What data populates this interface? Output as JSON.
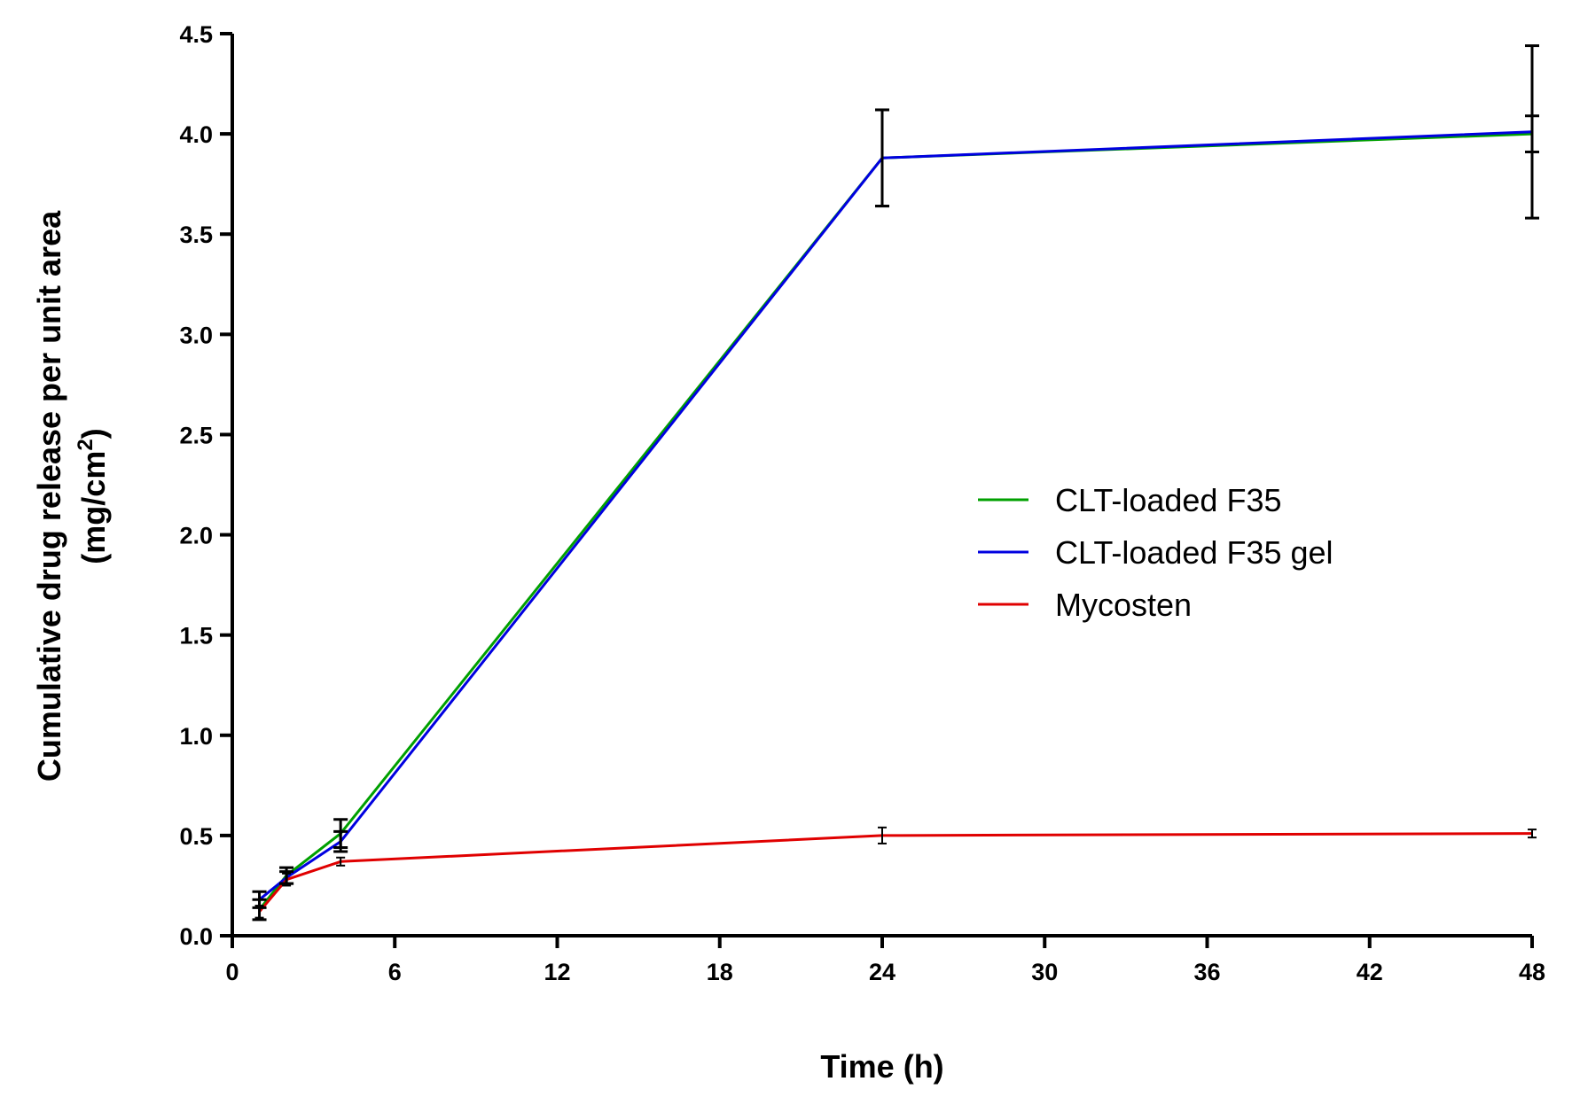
{
  "chart_data": {
    "type": "line",
    "title": "",
    "xlabel": "Time (h)",
    "ylabel": {
      "line1": "Cumulative drug release per unit area",
      "line2_prefix": "(mg/cm",
      "line2_sup": "2",
      "line2_suffix": ")"
    },
    "xlim": [
      0,
      48
    ],
    "ylim": [
      0,
      4.5
    ],
    "xticks": [
      "0",
      "6",
      "12",
      "18",
      "24",
      "30",
      "36",
      "42",
      "48"
    ],
    "xtick_values": [
      0,
      6,
      12,
      18,
      24,
      30,
      36,
      42,
      48
    ],
    "yticks": [
      "0.0",
      "0.5",
      "1.0",
      "1.5",
      "2.0",
      "2.5",
      "3.0",
      "3.5",
      "4.0",
      "4.5"
    ],
    "ytick_values": [
      0,
      0.5,
      1.0,
      1.5,
      2.0,
      2.5,
      3.0,
      3.5,
      4.0,
      4.5
    ],
    "grid": false,
    "legend_position": "center-right",
    "series": [
      {
        "name": "CLT-loaded F35",
        "color": "#00a000",
        "x": [
          1,
          2,
          4,
          24,
          48
        ],
        "y": [
          0.13,
          0.3,
          0.51,
          3.88,
          4.0
        ],
        "err": [
          0.05,
          0.04,
          0.07,
          0.24,
          0.09
        ]
      },
      {
        "name": "CLT-loaded F35 gel",
        "color": "#0000e0",
        "x": [
          1,
          2,
          4,
          24,
          48
        ],
        "y": [
          0.18,
          0.29,
          0.47,
          3.88,
          4.01
        ],
        "err": [
          0.04,
          0.03,
          0.05,
          0.24,
          0.43
        ]
      },
      {
        "name": "Mycosten",
        "color": "#e00000",
        "x": [
          1,
          2,
          4,
          24,
          48
        ],
        "y": [
          0.12,
          0.28,
          0.37,
          0.5,
          0.51
        ],
        "err": [
          0.03,
          0.03,
          0.02,
          0.04,
          0.02
        ]
      }
    ]
  }
}
